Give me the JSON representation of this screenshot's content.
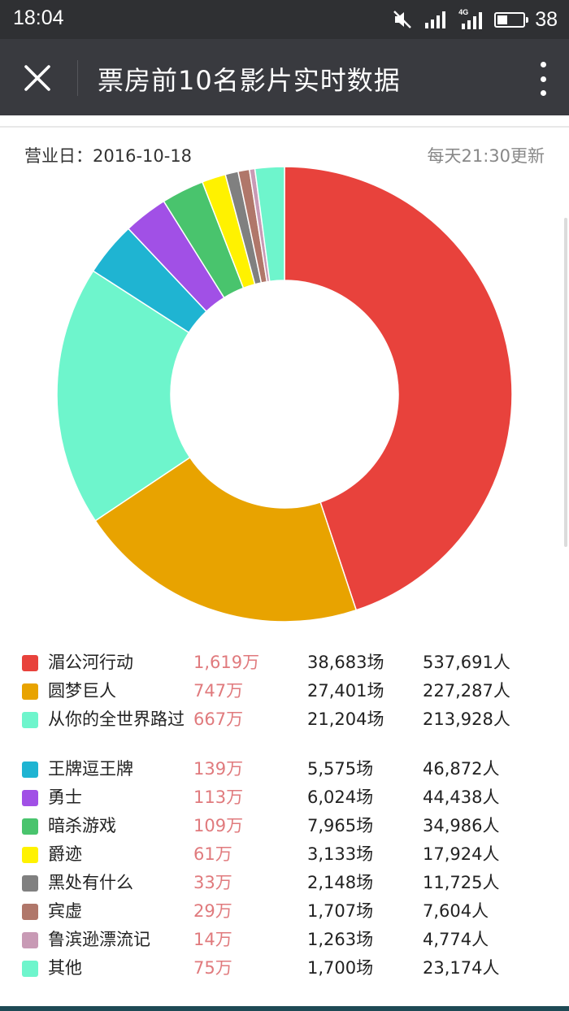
{
  "status_bar": {
    "time": "18:04",
    "network": "4G",
    "battery": 38,
    "icons": [
      "mute-icon",
      "signal-icon",
      "4g-signal-icon",
      "battery-icon"
    ]
  },
  "header": {
    "title": "票房前10名影片实时数据",
    "close_icon": "close-icon",
    "more_icon": "more-vertical-icon"
  },
  "info": {
    "business_day": "营业日：2016-10-18",
    "update_note": "每天21:30更新"
  },
  "chart_data": {
    "type": "pie",
    "donut": true,
    "categories": [
      "湄公河行动",
      "圆梦巨人",
      "从你的全世界路过",
      "王牌逗王牌",
      "勇士",
      "暗杀游戏",
      "爵迹",
      "黑处有什么",
      "宾虚",
      "鲁滨逊漂流记",
      "其他"
    ],
    "values": [
      1619,
      747,
      667,
      139,
      113,
      109,
      61,
      33,
      29,
      14,
      75
    ],
    "colors": [
      "#e8423c",
      "#e8a300",
      "#6ef5cc",
      "#1fb4d2",
      "#a150e6",
      "#49c46d",
      "#fff200",
      "#808080",
      "#b0776a",
      "#c89ab5",
      "#6ef5cc"
    ]
  },
  "legend": {
    "rows": [
      {
        "name": "湄公河行动",
        "box_office": "1,619万",
        "shows": "38,683场",
        "people": "537,691人",
        "color": "#e8423c"
      },
      {
        "name": "圆梦巨人",
        "box_office": "747万",
        "shows": "27,401场",
        "people": "227,287人",
        "color": "#e8a300"
      },
      {
        "name": "从你的全世界路过",
        "box_office": "667万",
        "shows": "21,204场",
        "people": "213,928人",
        "color": "#6ef5cc"
      },
      {
        "name": "王牌逗王牌",
        "box_office": "139万",
        "shows": "5,575场",
        "people": "46,872人",
        "color": "#1fb4d2"
      },
      {
        "name": "勇士",
        "box_office": "113万",
        "shows": "6,024场",
        "people": "44,438人",
        "color": "#a150e6"
      },
      {
        "name": "暗杀游戏",
        "box_office": "109万",
        "shows": "7,965场",
        "people": "34,986人",
        "color": "#49c46d"
      },
      {
        "name": "爵迹",
        "box_office": "61万",
        "shows": "3,133场",
        "people": "17,924人",
        "color": "#fff200"
      },
      {
        "name": "黑处有什么",
        "box_office": "33万",
        "shows": "2,148场",
        "people": "11,725人",
        "color": "#808080"
      },
      {
        "name": "宾虚",
        "box_office": "29万",
        "shows": "1,707场",
        "people": "7,604人",
        "color": "#b0776a"
      },
      {
        "name": "鲁滨逊漂流记",
        "box_office": "14万",
        "shows": "1,263场",
        "people": "4,774人",
        "color": "#c89ab5"
      },
      {
        "name": "其他",
        "box_office": "75万",
        "shows": "1,700场",
        "people": "23,174人",
        "color": "#6ef5cc"
      }
    ]
  }
}
